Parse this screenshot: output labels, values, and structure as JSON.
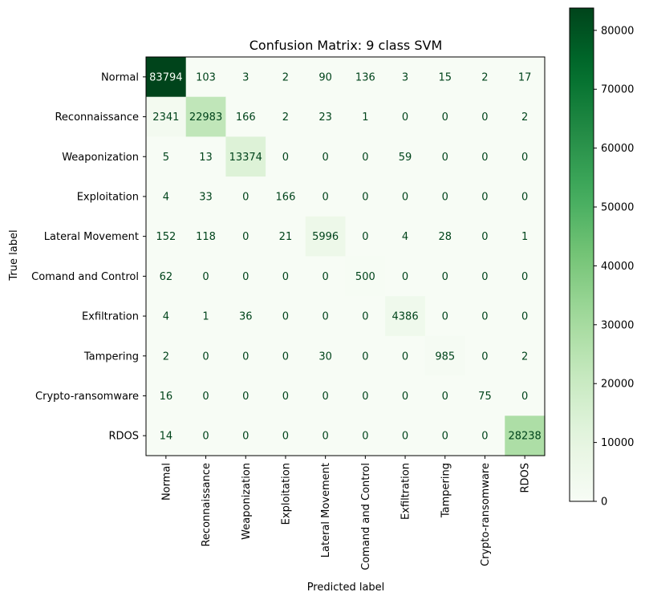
{
  "chart_data": {
    "type": "heatmap",
    "title": "Confusion Matrix: 9 class SVM",
    "xlabel": "Predicted label",
    "ylabel": "True label",
    "labels": [
      "Normal",
      "Reconnaissance",
      "Weaponization",
      "Exploitation",
      "Lateral Movement",
      "Comand and Control",
      "Exfiltration",
      "Tampering",
      "Crypto-ransomware",
      "RDOS"
    ],
    "matrix": [
      [
        83794,
        103,
        3,
        2,
        90,
        136,
        3,
        15,
        2,
        17
      ],
      [
        2341,
        22983,
        166,
        2,
        23,
        1,
        0,
        0,
        0,
        2
      ],
      [
        5,
        13,
        13374,
        0,
        0,
        0,
        59,
        0,
        0,
        0
      ],
      [
        4,
        33,
        0,
        166,
        0,
        0,
        0,
        0,
        0,
        0
      ],
      [
        152,
        118,
        0,
        21,
        5996,
        0,
        4,
        28,
        0,
        1
      ],
      [
        62,
        0,
        0,
        0,
        0,
        500,
        0,
        0,
        0,
        0
      ],
      [
        4,
        1,
        36,
        0,
        0,
        0,
        4386,
        0,
        0,
        0
      ],
      [
        2,
        0,
        0,
        0,
        30,
        0,
        0,
        985,
        0,
        2
      ],
      [
        16,
        0,
        0,
        0,
        0,
        0,
        0,
        0,
        75,
        0
      ],
      [
        14,
        0,
        0,
        0,
        0,
        0,
        0,
        0,
        0,
        28238
      ]
    ],
    "colormap": "Greens",
    "colorbar": {
      "vmin": 0,
      "vmax": 83794,
      "ticks": [
        0,
        10000,
        20000,
        30000,
        40000,
        50000,
        60000,
        70000,
        80000
      ]
    },
    "grid": false
  },
  "colors": {
    "cmap_low": "#f7fcf5",
    "cmap_high": "#00441b",
    "text_dark": "#00441b",
    "text_light": "#f7fcf5"
  }
}
